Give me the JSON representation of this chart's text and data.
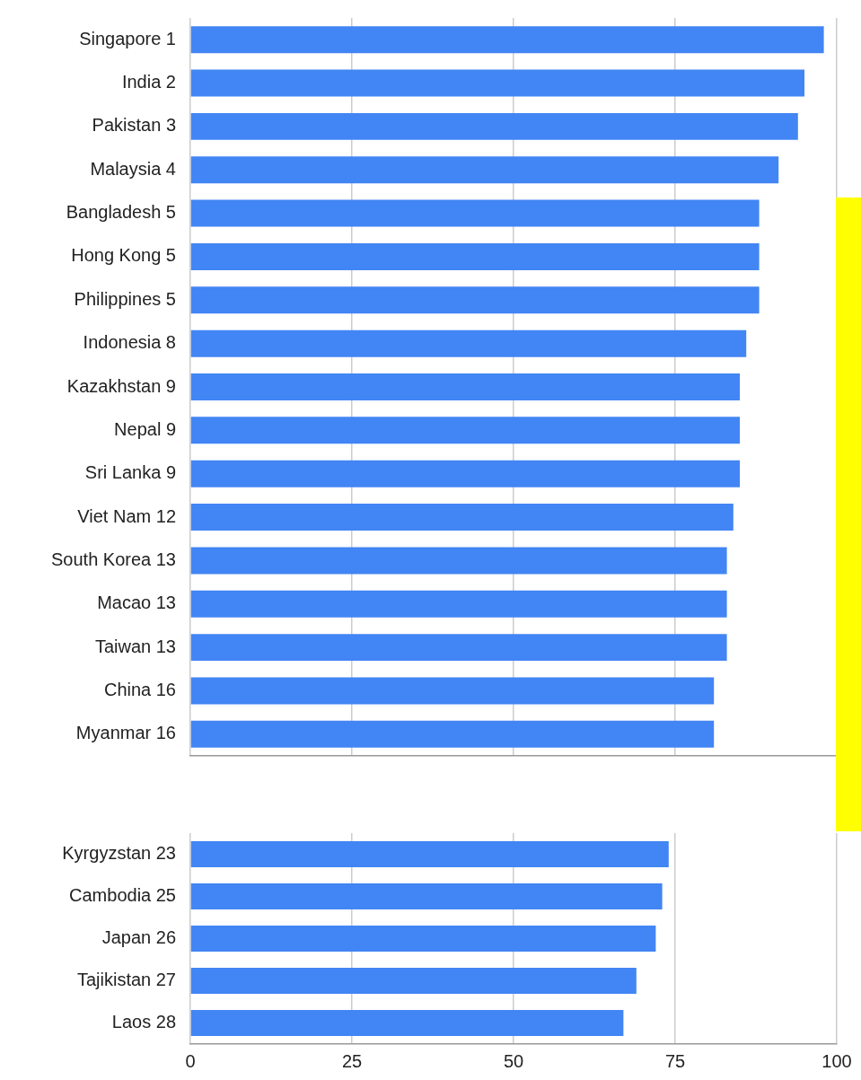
{
  "chart_data": [
    {
      "type": "bar",
      "orientation": "horizontal",
      "categories": [
        "Singapore 1",
        "India 2",
        "Pakistan 3",
        "Malaysia 4",
        "Bangladesh 5",
        "Hong Kong 5",
        "Philippines 5",
        "Indonesia 8",
        "Kazakhstan 9",
        "Nepal 9",
        "Sri Lanka 9",
        "Viet Nam 12",
        "South Korea 13",
        "Macao 13",
        "Taiwan 13",
        "China 16",
        "Myanmar 16"
      ],
      "values": [
        98,
        95,
        94,
        91,
        88,
        88,
        88,
        86,
        85,
        85,
        85,
        84,
        83,
        83,
        83,
        81,
        81
      ],
      "color": "#4285f4",
      "xlim": [
        0,
        100
      ],
      "xticks": [
        0,
        25,
        50,
        75,
        100
      ],
      "grid": "x",
      "tick_labels": "y"
    },
    {
      "type": "bar",
      "orientation": "horizontal",
      "categories": [
        "Kyrgyzstan 23",
        "Cambodia 25",
        "Japan 26",
        "Tajikistan 27",
        "Laos 28"
      ],
      "values": [
        74,
        73,
        72,
        69,
        67
      ],
      "color": "#4285f4",
      "xlim": [
        0,
        100
      ],
      "xticks": [
        0,
        25,
        50,
        75,
        100
      ],
      "grid": "x"
    }
  ]
}
